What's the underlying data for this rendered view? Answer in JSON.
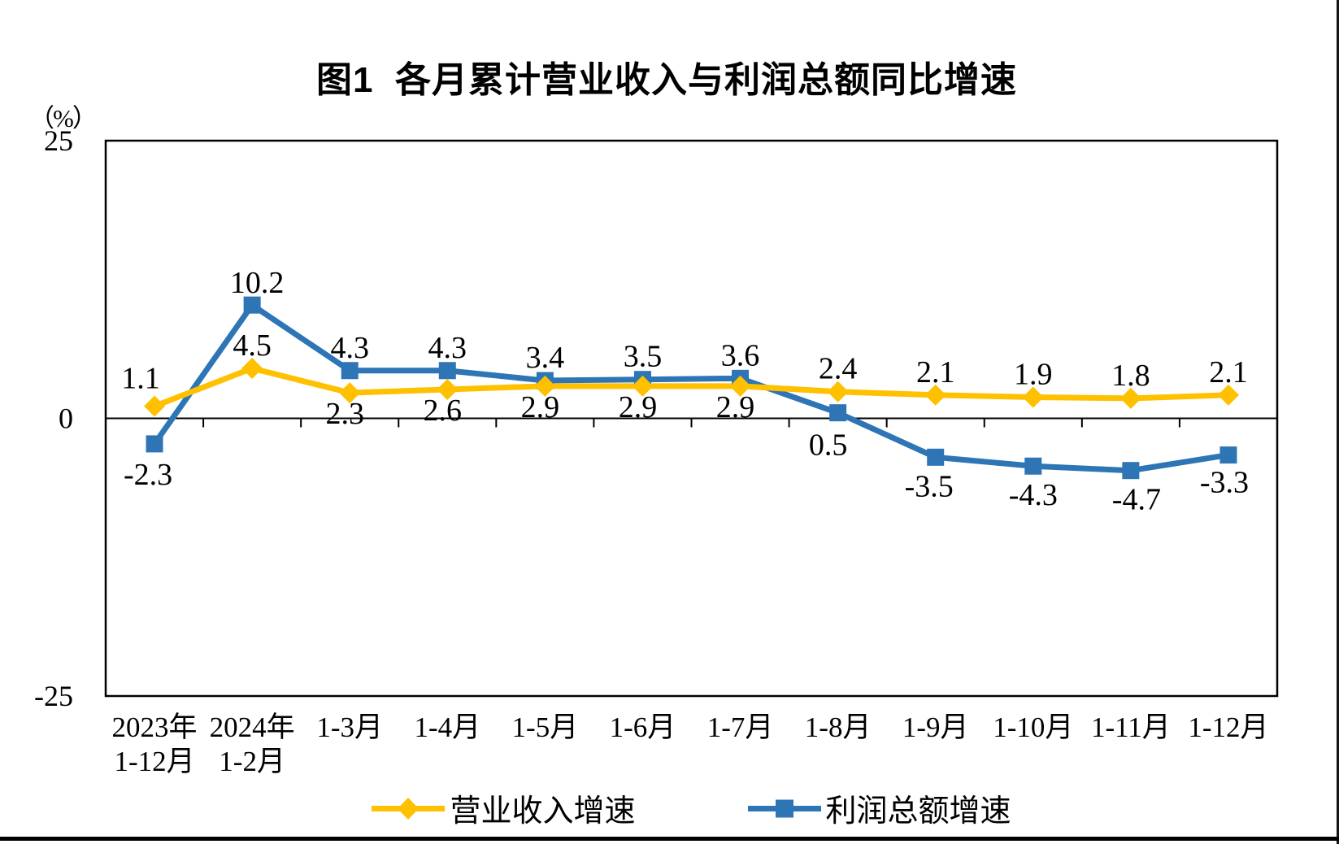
{
  "page": {
    "background": "#FFFFFF",
    "border_color": "#000000"
  },
  "chart_data": {
    "type": "line",
    "title": "图1  各月累计营业收入与利润总额同比增速",
    "y_unit": "（%）",
    "xlabel": "",
    "ylabel": "",
    "ylim": [
      -25,
      25
    ],
    "y_ticks": [
      "25",
      "0",
      "-25"
    ],
    "grid": false,
    "legend_position": "bottom",
    "axis_color": "#000000",
    "categories": [
      "2023年\n1-12月",
      "2024年\n1-2月",
      "1-3月",
      "1-4月",
      "1-5月",
      "1-6月",
      "1-7月",
      "1-8月",
      "1-9月",
      "1-10月",
      "1-11月",
      "1-12月"
    ],
    "series": [
      {
        "key": "revenue-growth",
        "name": "营业收入增速",
        "color": "#FFC000",
        "marker": "diamond",
        "values": [
          1.1,
          4.5,
          2.3,
          2.6,
          2.9,
          2.9,
          2.9,
          2.4,
          2.1,
          1.9,
          1.8,
          2.1
        ],
        "label_dx": [
          -17,
          0,
          -6,
          -6,
          -6,
          -6,
          -6,
          0,
          0,
          0,
          0,
          0
        ],
        "label_dy": [
          -22,
          -16,
          38,
          38,
          38,
          38,
          38,
          -16,
          -16,
          -16,
          -16,
          -16
        ]
      },
      {
        "key": "profit-growth",
        "name": "利润总额增速",
        "color": "#2E75B6",
        "marker": "square",
        "values": [
          -2.3,
          10.2,
          4.3,
          4.3,
          3.4,
          3.5,
          3.6,
          0.5,
          -3.5,
          -4.3,
          -4.7,
          -3.3
        ],
        "label_dx": [
          -8,
          6,
          0,
          0,
          0,
          0,
          0,
          -12,
          -8,
          0,
          7,
          -5
        ],
        "label_dy": [
          50,
          -15,
          -16,
          -16,
          -16,
          -16,
          -16,
          52,
          48,
          48,
          48,
          46
        ]
      }
    ]
  }
}
